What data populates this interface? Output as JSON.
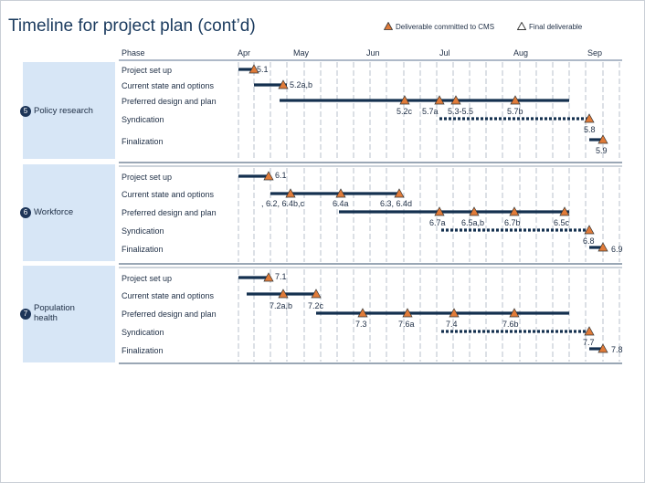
{
  "title": "Timeline for project plan (cont’d)",
  "legend": {
    "deliverable_label": "Deliverable committed to CMS",
    "final_label": "Final deliverable"
  },
  "header": {
    "phase": "Phase",
    "months": [
      "Apr",
      "May",
      "Jun",
      "Jul",
      "Aug",
      "Sep"
    ]
  },
  "colors": {
    "bar": "#14304f",
    "milestone": "#e07b39",
    "milestone_stroke": "#333333",
    "sidebox": "#d7e6f6",
    "badge": "#1d3558"
  },
  "sections": [
    {
      "number": "5",
      "name": "Policy research",
      "phases": [
        "Project set up",
        "Current state and options",
        "Preferred design and plan",
        "Syndication",
        "Finalization"
      ],
      "milestones": [
        "5.1",
        "5.2a,b",
        "5.2c",
        "5.7a",
        "5.3-5.5",
        "5.7b",
        "5.8",
        "5.9"
      ]
    },
    {
      "number": "6",
      "name": "Workforce",
      "phases": [
        "Project set up",
        "Current state and options",
        "Preferred design and plan",
        "Syndication",
        "Finalization"
      ],
      "milestones": [
        "6.1",
        ", 6.2, 6.4b,c",
        "6.4a",
        "6.3, 6.4d",
        "6.7a",
        "6.5a,b",
        "6.7b",
        "6.5c",
        "6.8",
        "6.9"
      ]
    },
    {
      "number": "7",
      "name": "Population health",
      "name_lines": [
        "Population",
        "health"
      ],
      "phases": [
        "Project set up",
        "Current state and options",
        "Preferred design and plan",
        "Syndication",
        "Finalization"
      ],
      "milestones": [
        "7.1",
        "7.2a,b",
        "7.2c",
        "7.3",
        "7.6a",
        "7.4",
        "7.6b",
        "7.7",
        "7.8"
      ]
    }
  ]
}
